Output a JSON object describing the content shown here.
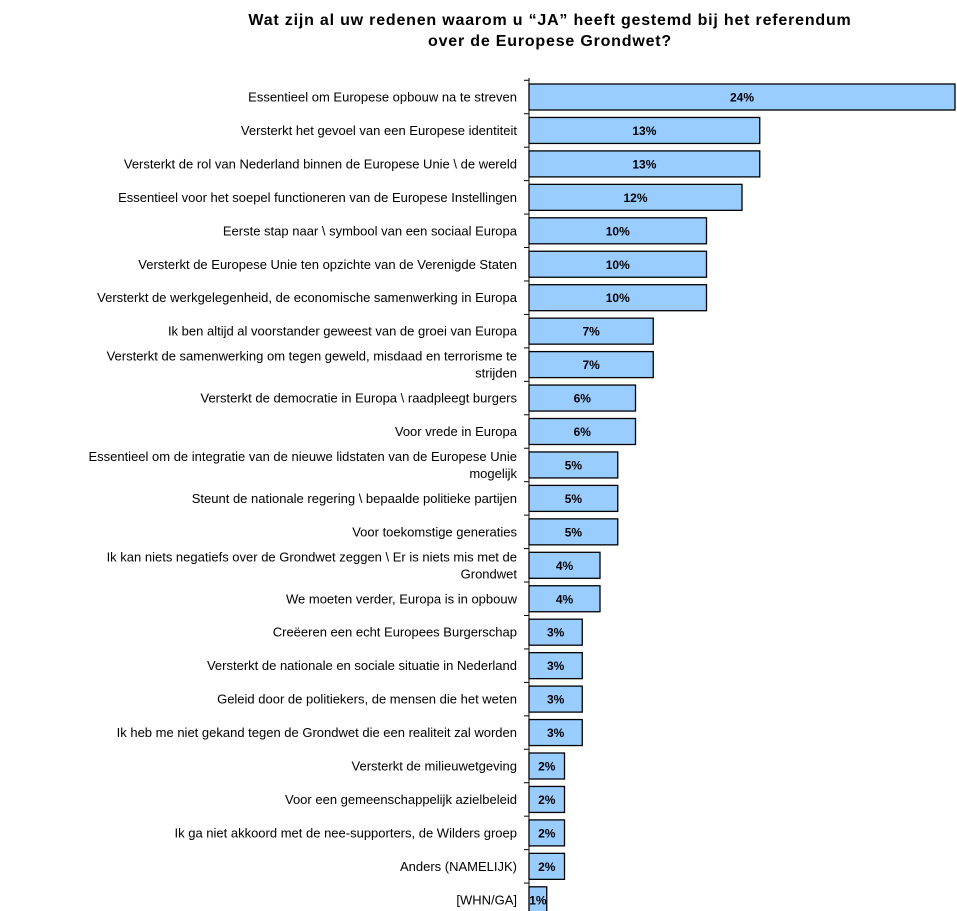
{
  "title": {
    "line1": "Wat zijn al uw redenen waarom u  “JA” heeft gestemd bij het referendum",
    "line2": "over de Europese Grondwet?"
  },
  "colors": {
    "bar_fill": "#99ccff",
    "bar_stroke": "#000000",
    "axis": "#000000",
    "text": "#000000",
    "background": "#ffffff"
  },
  "chart_data": {
    "type": "bar",
    "orientation": "horizontal",
    "title": "Wat zijn al uw redenen waarom u  “JA” heeft gestemd bij het referendum over de Europese Grondwet?",
    "xlabel": "",
    "ylabel": "",
    "xlim": [
      0,
      24
    ],
    "grid": false,
    "legend": "none",
    "value_unit": "%",
    "categories": [
      [
        "Essentieel om Europese opbouw na te streven"
      ],
      [
        "Versterkt het gevoel van een Europese identiteit"
      ],
      [
        "Versterkt de rol van Nederland binnen de Europese Unie \\ de wereld"
      ],
      [
        "Essentieel voor het soepel functioneren van de Europese  Instellingen"
      ],
      [
        "Eerste stap naar \\ symbool van een sociaal Europa"
      ],
      [
        "Versterkt de Europese Unie ten opzichte van de Verenigde Staten"
      ],
      [
        "Versterkt de werkgelegenheid, de economische samenwerking in Europa"
      ],
      [
        "Ik ben altijd al voorstander geweest van de groei van Europa"
      ],
      [
        "Versterkt de samenwerking om tegen geweld, misdaad en terrorisme te",
        "strijden"
      ],
      [
        "Versterkt de democratie in Europa \\ raadpleegt burgers"
      ],
      [
        "Voor vrede in Europa"
      ],
      [
        "Essentieel om de integratie van de nieuwe lidstaten van de Europese Unie",
        "mogelijk"
      ],
      [
        "Steunt de nationale regering \\ bepaalde politieke partijen"
      ],
      [
        "Voor toekomstige generaties"
      ],
      [
        "Ik kan niets negatiefs over de Grondwet zeggen \\ Er is niets mis met de",
        "Grondwet"
      ],
      [
        "We moeten verder, Europa is in opbouw"
      ],
      [
        "Creëeren een echt Europees Burgerschap"
      ],
      [
        "Versterkt de nationale en sociale situatie in Nederland"
      ],
      [
        "Geleid door de politiekers, de mensen die het weten"
      ],
      [
        "Ik heb me niet gekand tegen de Grondwet die een realiteit zal worden"
      ],
      [
        "Versterkt de milieuwetgeving"
      ],
      [
        "Voor een gemeenschappelijk azielbeleid"
      ],
      [
        "Ik ga niet akkoord met de nee-supporters, de Wilders groep"
      ],
      [
        "Anders (NAMELIJK)"
      ],
      [
        "[WHN/GA]"
      ]
    ],
    "values": [
      24,
      13,
      13,
      12,
      10,
      10,
      10,
      7,
      7,
      6,
      6,
      5,
      5,
      5,
      4,
      4,
      3,
      3,
      3,
      3,
      2,
      2,
      2,
      2,
      1
    ],
    "value_labels": [
      "24%",
      "13%",
      "13%",
      "12%",
      "10%",
      "10%",
      "10%",
      "7%",
      "7%",
      "6%",
      "6%",
      "5%",
      "5%",
      "5%",
      "4%",
      "4%",
      "3%",
      "3%",
      "3%",
      "3%",
      "2%",
      "2%",
      "2%",
      "2%",
      "1%"
    ]
  }
}
